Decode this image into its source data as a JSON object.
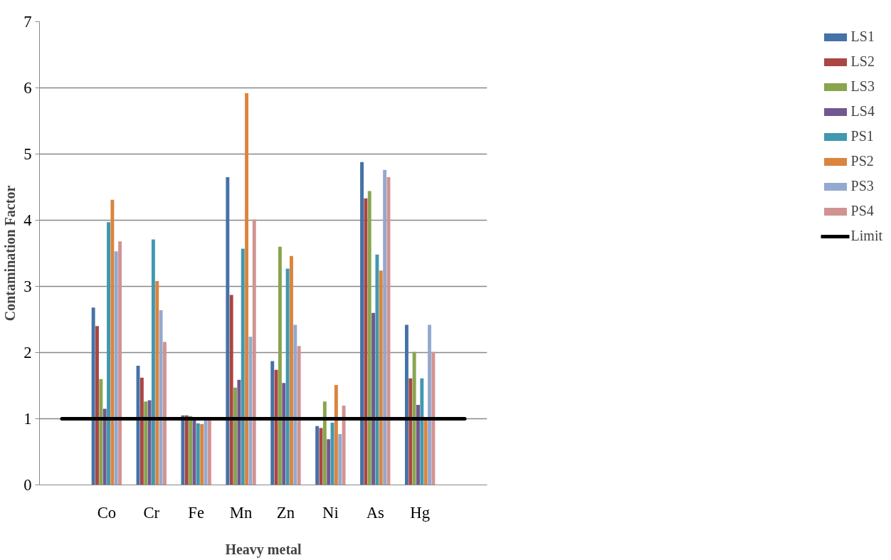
{
  "chart_data": {
    "type": "bar",
    "xlabel": "Heavy metal",
    "ylabel": "Contamination Factor",
    "categories": [
      null,
      "Co",
      "Cr",
      "Fe",
      "Mn",
      "Zn",
      "Ni",
      "As",
      "Hg",
      null
    ],
    "ylim": [
      0,
      7
    ],
    "yticks": [
      0,
      1,
      2,
      3,
      4,
      5,
      6,
      7
    ],
    "grid": "y",
    "legend": "right",
    "series": [
      {
        "name": "LS1",
        "color": "#4572a7",
        "values": [
          null,
          2.68,
          1.8,
          1.05,
          4.65,
          1.87,
          0.89,
          4.88,
          2.42,
          null
        ]
      },
      {
        "name": "LS2",
        "color": "#aa4643",
        "values": [
          null,
          2.4,
          1.62,
          1.05,
          2.87,
          1.74,
          0.86,
          4.33,
          1.61,
          null
        ]
      },
      {
        "name": "LS3",
        "color": "#89a54e",
        "values": [
          null,
          1.6,
          1.26,
          1.04,
          1.47,
          3.6,
          1.26,
          4.44,
          2.01,
          null
        ]
      },
      {
        "name": "LS4",
        "color": "#71588f",
        "values": [
          null,
          1.15,
          1.28,
          1.02,
          1.59,
          1.54,
          0.69,
          2.6,
          1.21,
          null
        ]
      },
      {
        "name": "PS1",
        "color": "#4198af",
        "values": [
          null,
          3.97,
          3.71,
          0.93,
          3.57,
          3.27,
          0.94,
          3.48,
          1.61,
          null
        ]
      },
      {
        "name": "PS2",
        "color": "#db843d",
        "values": [
          null,
          4.31,
          3.08,
          0.92,
          5.92,
          3.46,
          1.51,
          3.24,
          1.0,
          null
        ]
      },
      {
        "name": "PS3",
        "color": "#93a9cf",
        "values": [
          null,
          3.53,
          2.64,
          1.0,
          2.24,
          2.42,
          0.77,
          4.76,
          2.42,
          null
        ]
      },
      {
        "name": "PS4",
        "color": "#d19392",
        "values": [
          null,
          3.68,
          2.16,
          1.0,
          4.01,
          2.1,
          1.2,
          4.65,
          2.01,
          null
        ]
      },
      {
        "name": "Limit",
        "type": "line",
        "color": "#000000",
        "values": [
          1,
          1,
          1,
          1,
          1,
          1,
          1,
          1,
          1,
          1
        ]
      }
    ]
  }
}
